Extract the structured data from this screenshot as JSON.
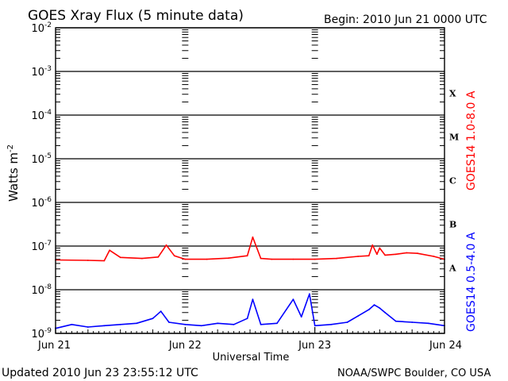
{
  "chart_data": {
    "type": "line",
    "title": "GOES Xray Flux (5 minute data)",
    "begin": "Begin:  2010 Jun 21 0000 UTC",
    "xlabel": "Universal Time",
    "ylabel_base": "Watts m",
    "ylabel_exp": "-2",
    "x_ticks": [
      "Jun 21",
      "Jun 22",
      "Jun 23",
      "Jun 24"
    ],
    "xlim": [
      "2010-06-21 00:00",
      "2010-06-24 00:00"
    ],
    "y_scale": "log",
    "ylim": [
      1e-09,
      0.01
    ],
    "y_ticks": [
      {
        "base": "10",
        "exp": "-9",
        "value": 1e-09
      },
      {
        "base": "10",
        "exp": "-8",
        "value": 1e-08
      },
      {
        "base": "10",
        "exp": "-7",
        "value": 1e-07
      },
      {
        "base": "10",
        "exp": "-6",
        "value": 1e-06
      },
      {
        "base": "10",
        "exp": "-5",
        "value": 1e-05
      },
      {
        "base": "10",
        "exp": "-4",
        "value": 0.0001
      },
      {
        "base": "10",
        "exp": "-3",
        "value": 0.001
      },
      {
        "base": "10",
        "exp": "-2",
        "value": 0.01
      }
    ],
    "flare_classes": [
      {
        "label": "X",
        "value": 0.000316
      },
      {
        "label": "M",
        "value": 3.16e-05
      },
      {
        "label": "C",
        "value": 3.16e-06
      },
      {
        "label": "B",
        "value": 3.16e-07
      },
      {
        "label": "A",
        "value": 3.16e-08
      }
    ],
    "series": [
      {
        "name": "GOES14 1.0-8.0 A",
        "color": "#ff0000",
        "x": [
          "2010-06-21 00:00",
          "2010-06-21 06:00",
          "2010-06-21 09:00",
          "2010-06-21 10:00",
          "2010-06-21 12:00",
          "2010-06-21 16:00",
          "2010-06-21 19:00",
          "2010-06-21 20:30",
          "2010-06-21 22:00",
          "2010-06-22 00:00",
          "2010-06-22 04:00",
          "2010-06-22 08:00",
          "2010-06-22 11:30",
          "2010-06-22 12:30",
          "2010-06-22 14:00",
          "2010-06-22 16:00",
          "2010-06-22 20:00",
          "2010-06-23 00:00",
          "2010-06-23 04:00",
          "2010-06-23 08:00",
          "2010-06-23 10:00",
          "2010-06-23 10:40",
          "2010-06-23 11:30",
          "2010-06-23 12:00",
          "2010-06-23 13:00",
          "2010-06-23 15:00",
          "2010-06-23 17:00",
          "2010-06-23 19:00",
          "2010-06-23 22:00",
          "2010-06-24 00:00"
        ],
        "values": [
          4.8e-08,
          4.7e-08,
          4.6e-08,
          8e-08,
          5.5e-08,
          5.2e-08,
          5.6e-08,
          1.05e-07,
          6e-08,
          5e-08,
          5e-08,
          5.3e-08,
          6e-08,
          1.6e-07,
          5.2e-08,
          5e-08,
          5e-08,
          5e-08,
          5.2e-08,
          5.8e-08,
          6e-08,
          1.05e-07,
          6.5e-08,
          9e-08,
          6.2e-08,
          6.5e-08,
          7e-08,
          6.8e-08,
          5.8e-08,
          5e-08
        ]
      },
      {
        "name": "GOES14 0.5-4.0 A",
        "color": "#0000ff",
        "x": [
          "2010-06-21 00:00",
          "2010-06-21 03:00",
          "2010-06-21 06:00",
          "2010-06-21 09:00",
          "2010-06-21 12:00",
          "2010-06-21 15:00",
          "2010-06-21 18:00",
          "2010-06-21 19:30",
          "2010-06-21 21:00",
          "2010-06-22 00:00",
          "2010-06-22 03:00",
          "2010-06-22 06:00",
          "2010-06-22 09:00",
          "2010-06-22 11:30",
          "2010-06-22 12:30",
          "2010-06-22 14:00",
          "2010-06-22 17:00",
          "2010-06-22 20:00",
          "2010-06-22 21:30",
          "2010-06-22 23:00",
          "2010-06-23 00:00",
          "2010-06-23 03:00",
          "2010-06-23 06:00",
          "2010-06-23 08:00",
          "2010-06-23 10:00",
          "2010-06-23 11:00",
          "2010-06-23 12:00",
          "2010-06-23 13:00",
          "2010-06-23 15:00",
          "2010-06-23 18:00",
          "2010-06-23 21:00",
          "2010-06-24 00:00"
        ],
        "values": [
          1.3e-09,
          1.6e-09,
          1.4e-09,
          1.5e-09,
          1.6e-09,
          1.7e-09,
          2.2e-09,
          3.2e-09,
          1.8e-09,
          1.6e-09,
          1.5e-09,
          1.7e-09,
          1.6e-09,
          2.2e-09,
          6e-09,
          1.6e-09,
          1.7e-09,
          6e-09,
          2.4e-09,
          8e-09,
          1.5e-09,
          1.6e-09,
          1.8e-09,
          2.5e-09,
          3.5e-09,
          4.5e-09,
          3.8e-09,
          3e-09,
          1.9e-09,
          1.8e-09,
          1.7e-09,
          1.5e-09
        ]
      }
    ],
    "legend": "right, vertical"
  },
  "footer": {
    "updated": "Updated 2010 Jun 23 23:55:12 UTC",
    "credit": "NOAA/SWPC Boulder, CO USA"
  }
}
